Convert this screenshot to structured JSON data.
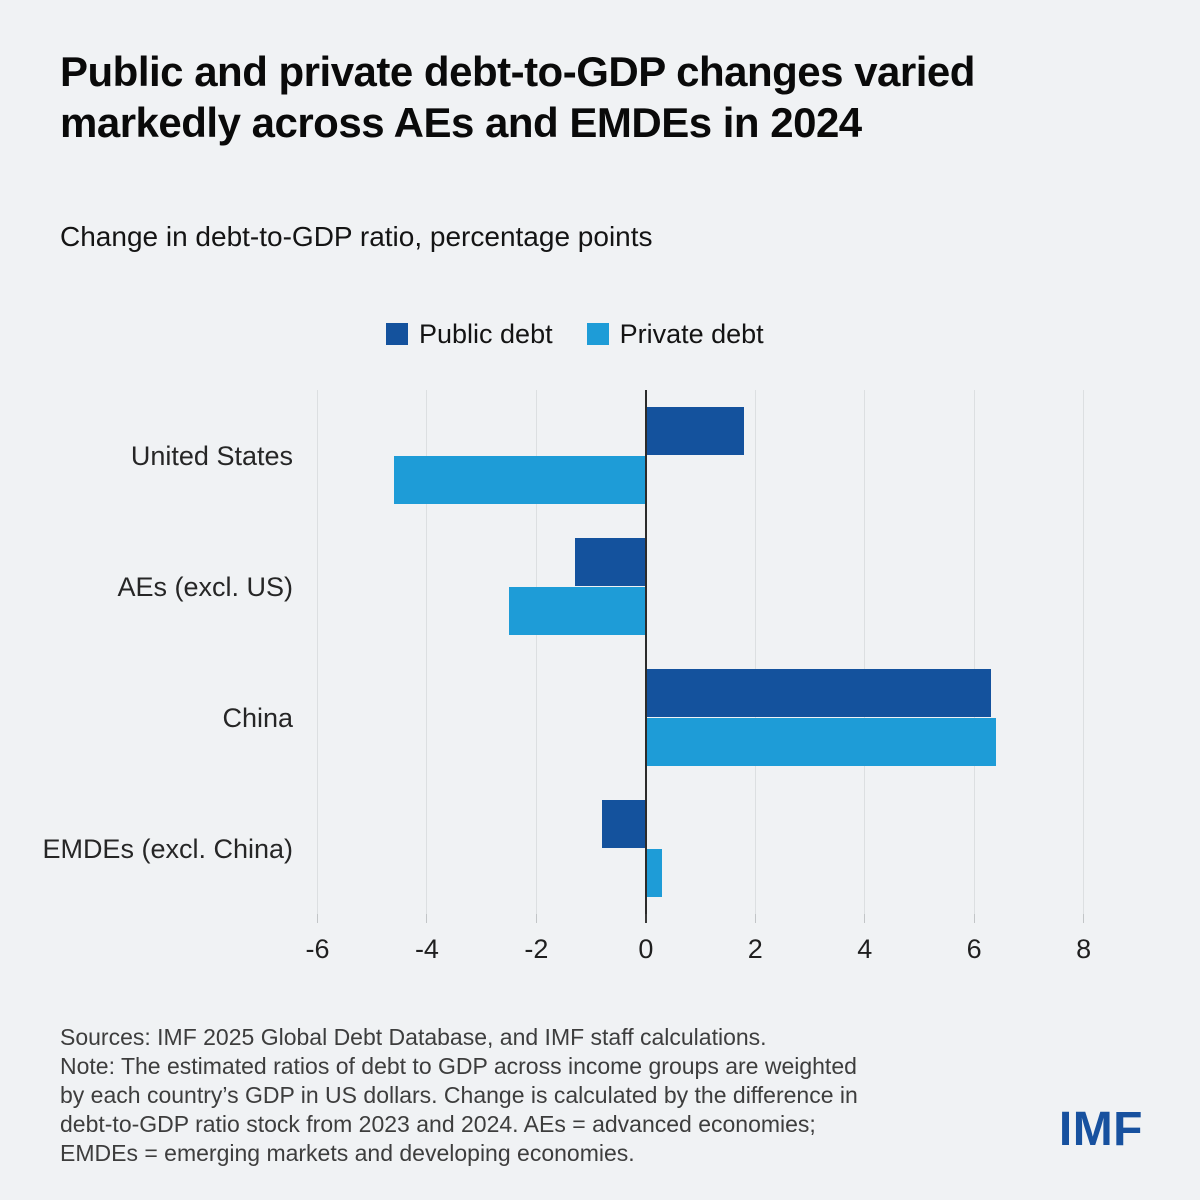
{
  "page": {
    "background": "#f0f2f4"
  },
  "header": {
    "title_lines": [
      "Public and private debt-to-GDP changes varied",
      "markedly across AEs and EMDEs in 2024"
    ],
    "subtitle": "Change in debt-to-GDP ratio, percentage points"
  },
  "chart_data": {
    "type": "bar",
    "orientation": "horizontal",
    "title": "Public and private debt-to-GDP changes varied markedly across AEs and EMDEs in 2024",
    "subtitle": "Change in debt-to-GDP ratio, percentage points",
    "xlabel": "Change in debt-to-GDP ratio, percentage points",
    "ylabel": "",
    "categories": [
      "United States",
      "AEs (excl. US)",
      "China",
      "EMDEs (excl. China)"
    ],
    "series": [
      {
        "name": "Public debt",
        "color": "#14529d",
        "values": [
          1.8,
          -1.3,
          6.3,
          -0.8
        ]
      },
      {
        "name": "Private debt",
        "color": "#1e9cd7",
        "values": [
          -4.6,
          -2.5,
          6.4,
          0.3
        ]
      }
    ],
    "axis": {
      "min": -6.32,
      "max": 9.03,
      "ticks": [
        -6,
        -4,
        -2,
        0,
        2,
        4,
        6,
        8
      ]
    },
    "grid": true,
    "legend_position": "top",
    "colors": {
      "gridline": "#dcdfe1",
      "zero_line": "#2b2b2b",
      "tick": "#c2c5c7"
    }
  },
  "footer": {
    "lines": [
      "Sources: IMF 2025 Global Debt Database, and IMF staff calculations.",
      "Note: The estimated ratios of debt to GDP across income groups are weighted",
      "by each country’s GDP in US dollars. Change is calculated by the difference in",
      "debt-to-GDP ratio stock from 2023 and 2024. AEs = advanced economies;",
      "EMDEs = emerging markets and developing economies."
    ]
  },
  "logo": {
    "text": "IMF",
    "color": "#17519f"
  }
}
